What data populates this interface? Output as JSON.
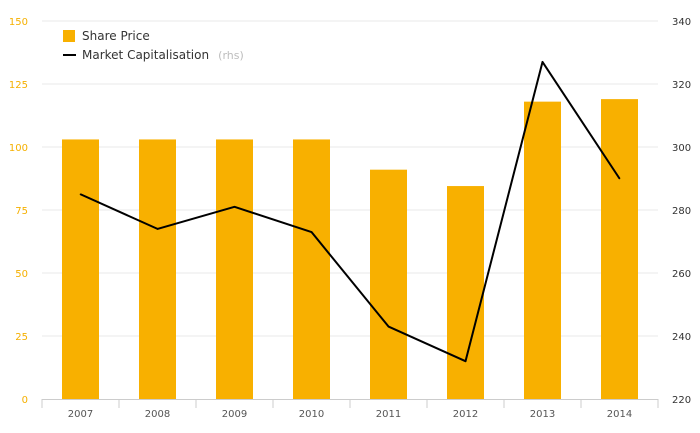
{
  "chart_data": {
    "type": "bar+line",
    "categories": [
      "2007",
      "2008",
      "2009",
      "2010",
      "2011",
      "2012",
      "2013",
      "2014"
    ],
    "series": [
      {
        "name": "Share Price",
        "type": "bar",
        "axis": "left",
        "color": "#f8b000",
        "values": [
          103,
          103,
          103,
          103,
          91,
          84.5,
          118,
          119
        ]
      },
      {
        "name": "Market Capitalisation",
        "name_suffix": "(rhs)",
        "type": "line",
        "axis": "right",
        "color": "#000000",
        "values": [
          285,
          274,
          281,
          273,
          243,
          232,
          327,
          290
        ]
      }
    ],
    "y_left": {
      "min": 0,
      "max": 150,
      "ticks": [
        "0",
        "25",
        "50",
        "75",
        "100",
        "125",
        "150"
      ],
      "color": "#f5b000"
    },
    "y_right": {
      "min": 220,
      "max": 340,
      "ticks": [
        "220",
        "240",
        "260",
        "280",
        "300",
        "320",
        "340"
      ]
    },
    "grid": true,
    "legend_position": "top-left"
  }
}
